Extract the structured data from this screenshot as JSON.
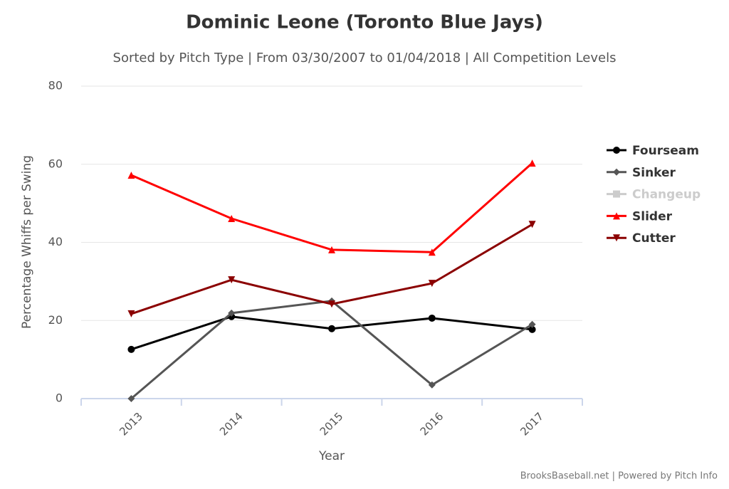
{
  "chart_data": {
    "type": "line",
    "title": "Dominic Leone (Toronto Blue Jays)",
    "subtitle": "Sorted by Pitch Type | From 03/30/2007 to 01/04/2018 | All Competition Levels",
    "x_label": "Year",
    "y_label": "Percentage Whiffs per Swing",
    "credits": "BrooksBaseball.net | Powered by Pitch Info",
    "categories": [
      "2013",
      "2014",
      "2015",
      "2016",
      "2017"
    ],
    "ylim": [
      0,
      80
    ],
    "yticks": [
      0,
      20,
      40,
      60,
      80
    ],
    "grid": true,
    "legend": "right",
    "series": [
      {
        "name": "Fourseam",
        "color": "#000000",
        "marker": "circle",
        "visible": true,
        "values": [
          12.6,
          21.0,
          17.9,
          20.6,
          17.7
        ]
      },
      {
        "name": "Sinker",
        "color": "#555555",
        "marker": "diamond",
        "visible": true,
        "values": [
          0,
          21.9,
          25.0,
          3.5,
          19.0
        ]
      },
      {
        "name": "Changeup",
        "color": "#cccccc",
        "marker": "square",
        "visible": false,
        "values": [
          null,
          null,
          null,
          null,
          null
        ]
      },
      {
        "name": "Slider",
        "color": "#ff0000",
        "marker": "triangle",
        "visible": true,
        "values": [
          57.2,
          46.1,
          38.1,
          37.5,
          60.3
        ]
      },
      {
        "name": "Cutter",
        "color": "#8b0000",
        "marker": "triangle-down",
        "visible": true,
        "values": [
          21.7,
          30.4,
          24.2,
          29.5,
          44.6
        ]
      }
    ]
  }
}
